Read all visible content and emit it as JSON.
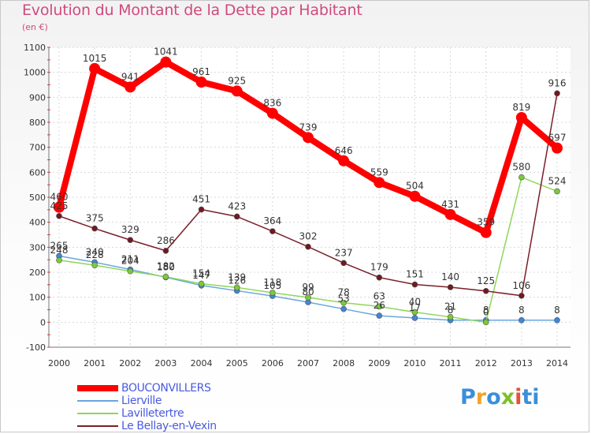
{
  "header": {
    "title": "Evolution du Montant de la Dette par Habitant",
    "subtitle": "(en €)"
  },
  "logo": {
    "letters": [
      "P",
      "r",
      "o",
      "x",
      "i",
      "t",
      "i"
    ],
    "colors": [
      "#3a8fd9",
      "#f2a424",
      "#3a8fd9",
      "#7fbf2a",
      "#e8503c",
      "#3a8fd9",
      "#3a8fd9"
    ]
  },
  "chart_data": {
    "type": "line",
    "x": [
      "2000",
      "2001",
      "2002",
      "2003",
      "2004",
      "2005",
      "2006",
      "2007",
      "2008",
      "2009",
      "2010",
      "2011",
      "2012",
      "2013",
      "2014"
    ],
    "ylim": [
      -100,
      1100
    ],
    "yticks": [
      -100,
      0,
      100,
      200,
      300,
      400,
      500,
      600,
      700,
      800,
      900,
      1000,
      1100
    ],
    "grid": true,
    "legend_position": "bottom-left",
    "series": [
      {
        "name": "BOUCONVILLERS",
        "color": "#ff0000",
        "values": [
          460,
          1015,
          941,
          1041,
          961,
          925,
          836,
          739,
          646,
          559,
          504,
          431,
          359,
          819,
          697
        ],
        "labels": [
          "460",
          "1015",
          "941",
          "1041",
          "961",
          "925",
          "836",
          "739",
          "646",
          "559",
          "504",
          "431",
          "359",
          "819",
          "697"
        ]
      },
      {
        "name": "Lierville",
        "color": "#6aa6dd",
        "values": [
          265,
          240,
          211,
          180,
          147,
          126,
          105,
          80,
          53,
          26,
          17,
          8,
          8,
          8,
          8
        ],
        "labels": [
          "265",
          "240",
          "211",
          "180",
          "147",
          "126",
          "105",
          "80",
          "53",
          "26",
          "17",
          "8",
          "8",
          "8",
          "8"
        ]
      },
      {
        "name": "Lavilletertre",
        "color": "#8fd65a",
        "values": [
          248,
          228,
          204,
          182,
          154,
          139,
          118,
          99,
          78,
          63,
          40,
          21,
          0,
          580,
          524
        ],
        "labels": [
          "248",
          "228",
          "204",
          "182",
          "154",
          "139",
          "118",
          "99",
          "78",
          "63",
          "40",
          "21",
          "0",
          "580",
          "524"
        ]
      },
      {
        "name": "Le Bellay-en-Vexin",
        "color": "#7a1f28",
        "values": [
          425,
          375,
          329,
          286,
          451,
          423,
          364,
          302,
          237,
          179,
          151,
          140,
          125,
          106,
          916
        ],
        "labels": [
          "425",
          "375",
          "329",
          "286",
          "451",
          "423",
          "364",
          "302",
          "237",
          "179",
          "151",
          "140",
          "125",
          "106",
          "916"
        ]
      }
    ]
  }
}
